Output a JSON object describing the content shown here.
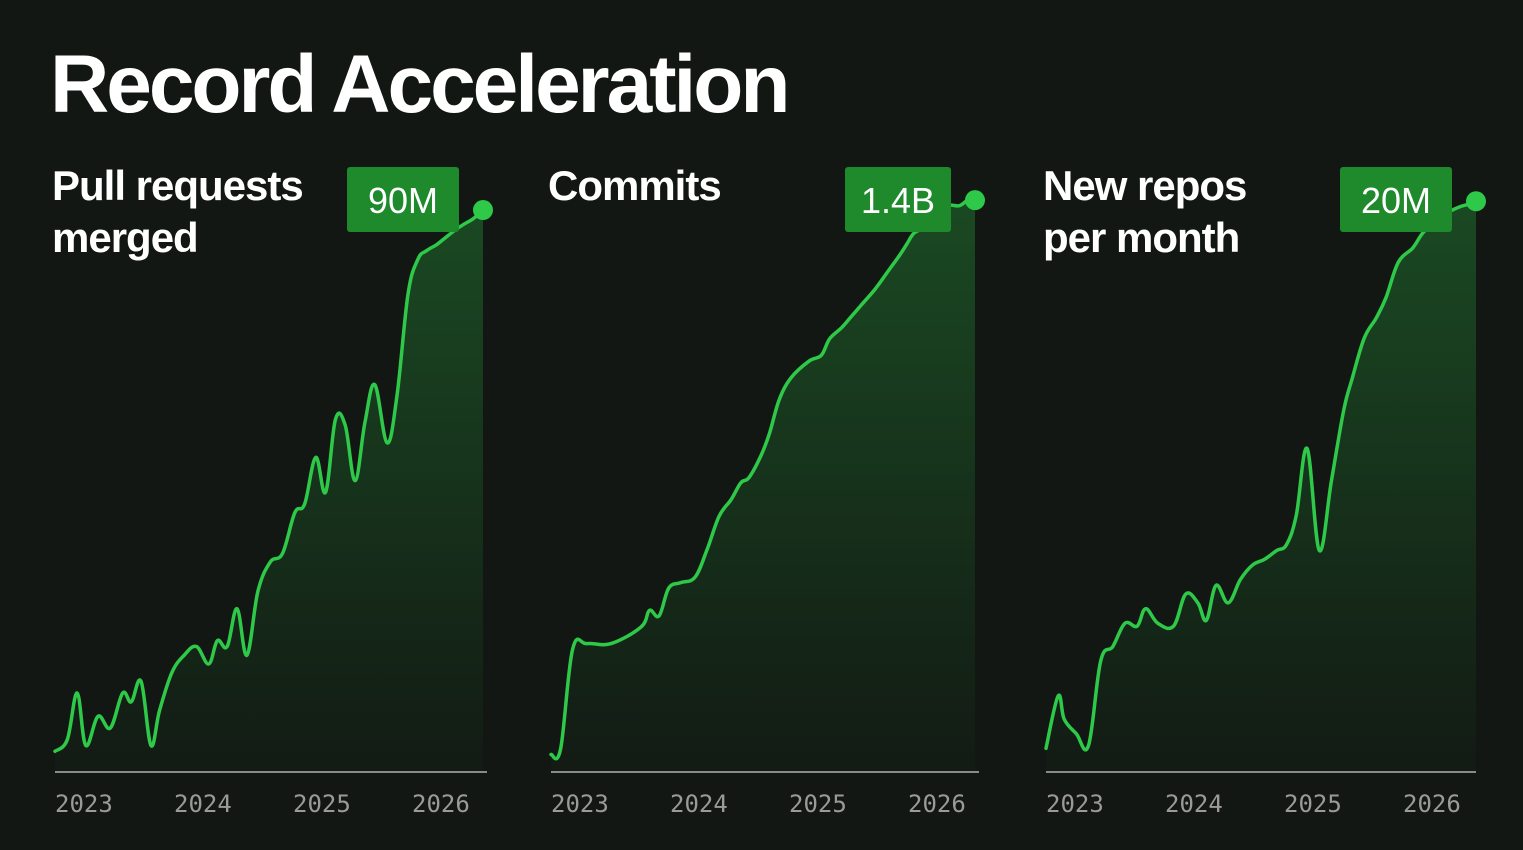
{
  "title": "Record Acceleration",
  "colors": {
    "background": "#121713",
    "line": "#2fc94a",
    "badge": "#1f8a2c",
    "axis": "#8a8a8a",
    "tick_label": "#9a9a9a"
  },
  "chart_data": [
    {
      "type": "area",
      "title": [
        "Pull requests",
        "merged"
      ],
      "badge": "90M",
      "x_ticks": [
        "2023",
        "2024",
        "2025",
        "2026"
      ],
      "x": [
        2022.8,
        2022.9,
        2022.98,
        2023.05,
        2023.15,
        2023.25,
        2023.35,
        2023.42,
        2023.5,
        2023.58,
        2023.65,
        2023.75,
        2023.85,
        2023.95,
        2024.05,
        2024.12,
        2024.2,
        2024.28,
        2024.36,
        2024.45,
        2024.55,
        2024.65,
        2024.75,
        2024.83,
        2024.92,
        2025.0,
        2025.08,
        2025.16,
        2025.24,
        2025.32,
        2025.4,
        2025.5,
        2025.58,
        2025.67,
        2025.75,
        2025.82,
        2025.9,
        2025.96,
        2026.05,
        2026.12,
        2026.2,
        2026.28
      ],
      "values": [
        3,
        7,
        23,
        5,
        15,
        11,
        23,
        20,
        27,
        5,
        17,
        30,
        36,
        39,
        33,
        41,
        39,
        52,
        36,
        58,
        68,
        71,
        85,
        88,
        104,
        92,
        117,
        115,
        96,
        116,
        129,
        109,
        125,
        160,
        172,
        175,
        177,
        179,
        182,
        184,
        186,
        189
      ],
      "ylim": [
        0,
        200
      ]
    },
    {
      "type": "area",
      "title": [
        "Commits"
      ],
      "badge": "1.4B",
      "x_ticks": [
        "2023",
        "2024",
        "2025",
        "2026"
      ],
      "x": [
        2022.8,
        2022.88,
        2022.98,
        2023.1,
        2023.3,
        2023.55,
        2023.62,
        2023.7,
        2023.78,
        2023.88,
        2024.0,
        2024.1,
        2024.2,
        2024.3,
        2024.38,
        2024.45,
        2024.55,
        2024.62,
        2024.7,
        2024.8,
        2024.95,
        2025.05,
        2025.12,
        2025.22,
        2025.3,
        2025.38,
        2025.5,
        2025.6,
        2025.7,
        2025.76,
        2025.82,
        2025.9,
        2026.0,
        2026.1,
        2026.2,
        2026.27,
        2026.33
      ],
      "values": [
        1,
        2,
        20,
        21,
        21,
        24,
        27,
        26,
        31,
        32,
        33,
        38,
        44,
        47,
        50,
        51,
        55,
        59,
        65,
        69,
        72,
        73,
        76,
        78,
        80,
        82,
        85,
        88,
        91,
        93,
        95,
        96,
        98,
        100,
        100,
        101,
        101
      ],
      "ylim": [
        0,
        105
      ]
    },
    {
      "type": "area",
      "title": [
        "New repos",
        "per month"
      ],
      "badge": "20M",
      "x_ticks": [
        "2023",
        "2024",
        "2025",
        "2026"
      ],
      "x": [
        2022.8,
        2022.9,
        2022.95,
        2023.05,
        2023.15,
        2023.25,
        2023.35,
        2023.45,
        2023.55,
        2023.62,
        2023.72,
        2023.85,
        2023.95,
        2024.05,
        2024.12,
        2024.2,
        2024.3,
        2024.4,
        2024.5,
        2024.6,
        2024.7,
        2024.78,
        2024.86,
        2024.95,
        2025.05,
        2025.15,
        2025.25,
        2025.32,
        2025.42,
        2025.52,
        2025.6,
        2025.7,
        2025.82,
        2025.9,
        2026.0,
        2026.1,
        2026.2,
        2026.28,
        2026.34
      ],
      "values": [
        4,
        22,
        14,
        9,
        5,
        34,
        39,
        47,
        46,
        52,
        47,
        46,
        57,
        54,
        48,
        60,
        54,
        62,
        67,
        69,
        72,
        74,
        84,
        107,
        72,
        96,
        120,
        131,
        145,
        152,
        159,
        171,
        176,
        181,
        185,
        188,
        190,
        191,
        192
      ],
      "ylim": [
        0,
        200
      ]
    }
  ]
}
